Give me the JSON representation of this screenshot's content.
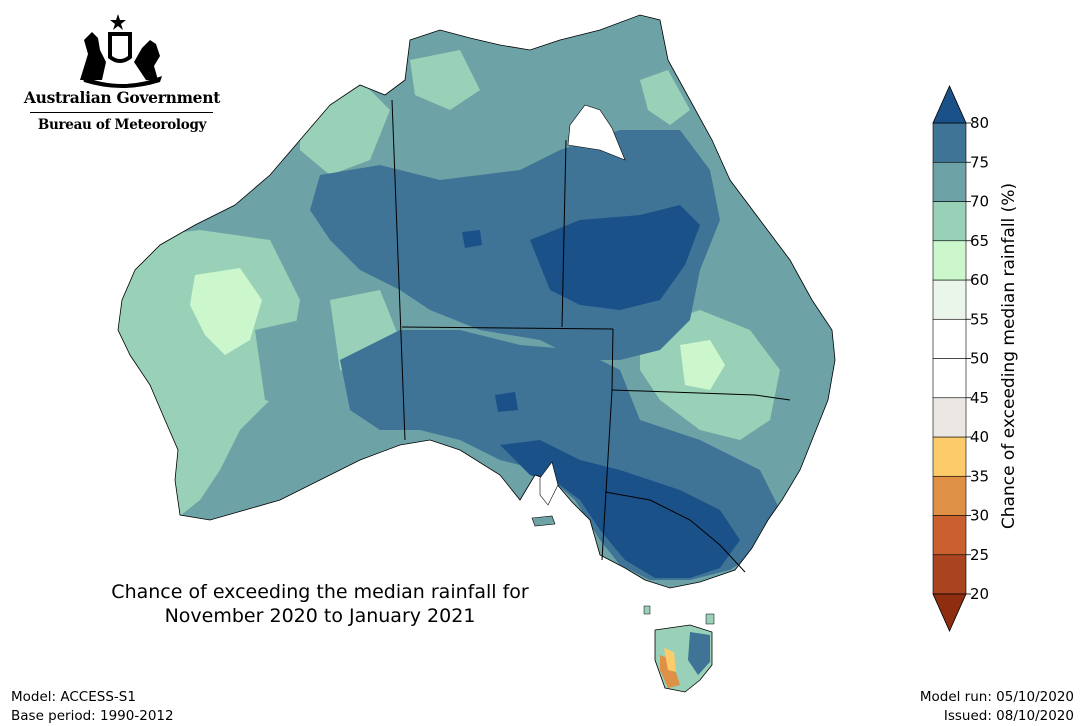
{
  "logo": {
    "government": "Australian Government",
    "agency": "Bureau of Meteorology"
  },
  "map": {
    "title_line1": "Chance of exceeding the median rainfall for",
    "title_line2": "November 2020 to January 2021",
    "region": "Australia"
  },
  "footer": {
    "model": "Model: ACCESS-S1",
    "base_period": "Base period: 1990-2012",
    "model_run": "Model run: 05/10/2020",
    "issued": "Issued: 08/10/2020"
  },
  "colorbar": {
    "label": "Chance of exceeding median rainfall (%)",
    "ticks": [
      "20",
      "25",
      "30",
      "35",
      "40",
      "45",
      "50",
      "55",
      "60",
      "65",
      "70",
      "75",
      "80"
    ],
    "bins": [
      {
        "range": "<20",
        "color": "#8f2d10"
      },
      {
        "range": "20-25",
        "color": "#aa4420"
      },
      {
        "range": "25-30",
        "color": "#c9602e"
      },
      {
        "range": "30-35",
        "color": "#de9046"
      },
      {
        "range": "35-40",
        "color": "#fdcc6a"
      },
      {
        "range": "40-45",
        "color": "#ebe7e3"
      },
      {
        "range": "45-50",
        "color": "#ffffff"
      },
      {
        "range": "50-55",
        "color": "#ffffff"
      },
      {
        "range": "55-60",
        "color": "#ebf6eb"
      },
      {
        "range": "60-65",
        "color": "#ccf7cc"
      },
      {
        "range": "65-70",
        "color": "#99d1b8"
      },
      {
        "range": "70-75",
        "color": "#6da3a6"
      },
      {
        "range": "75-80",
        "color": "#3f7497"
      },
      {
        "range": ">80",
        "color": "#1a5189"
      }
    ]
  }
}
